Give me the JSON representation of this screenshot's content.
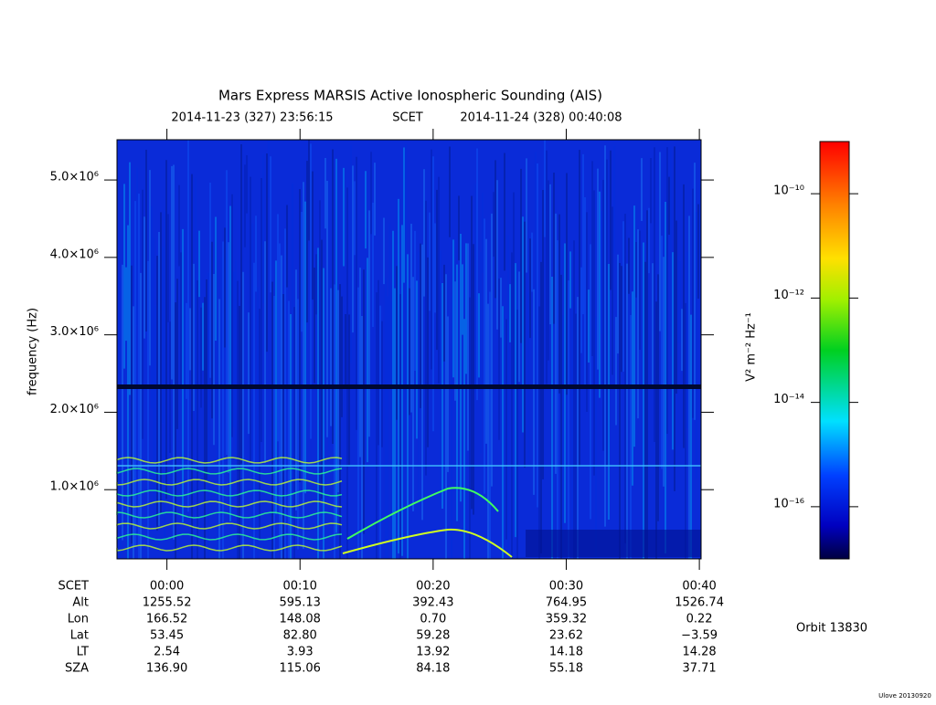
{
  "chart_data": {
    "type": "spectrogram",
    "title": "Mars Express MARSIS Active Ionospheric Sounding (AIS)",
    "subtitle": {
      "start": "2014-11-23 (327) 23:56:15",
      "frame": "SCET",
      "end": "2014-11-24 (328) 00:40:08"
    },
    "ylabel": "frequency (Hz)",
    "ylim": [
      106000,
      5520000
    ],
    "yticks": [
      {
        "value": 1000000,
        "label": "1.0×10⁶"
      },
      {
        "value": 2000000,
        "label": "2.0×10⁶"
      },
      {
        "value": 3000000,
        "label": "3.0×10⁶"
      },
      {
        "value": 4000000,
        "label": "4.0×10⁶"
      },
      {
        "value": 5000000,
        "label": "5.0×10⁶"
      }
    ],
    "xlim": [
      -3.75,
      40.13
    ],
    "xticks": [
      {
        "value": 0,
        "label": "00:00"
      },
      {
        "value": 10,
        "label": "00:10"
      },
      {
        "value": 20,
        "label": "00:20"
      },
      {
        "value": 30,
        "label": "00:30"
      },
      {
        "value": 40,
        "label": "00:40"
      }
    ],
    "ephemeris": {
      "labels": [
        "SCET",
        "Alt",
        "Lon",
        "Lat",
        "LT",
        "SZA"
      ],
      "rows": [
        [
          "1255.52",
          "595.13",
          "392.43",
          "764.95",
          "1526.74"
        ],
        [
          "166.52",
          "148.08",
          "0.70",
          "359.32",
          "0.22"
        ],
        [
          "53.45",
          "82.80",
          "59.28",
          "23.62",
          "−3.59"
        ],
        [
          "2.54",
          "3.93",
          "13.92",
          "14.18",
          "14.28"
        ],
        [
          "136.90",
          "115.06",
          "84.18",
          "55.18",
          "37.71"
        ]
      ]
    },
    "colorbar": {
      "label": "V² m⁻² Hz⁻¹",
      "log": true,
      "lim": [
        1e-17,
        1e-09
      ],
      "ticks": [
        {
          "value": 1e-10,
          "label": "10⁻¹⁰"
        },
        {
          "value": 1e-12,
          "label": "10⁻¹²"
        },
        {
          "value": 1e-14,
          "label": "10⁻¹⁴"
        },
        {
          "value": 1e-16,
          "label": "10⁻¹⁶"
        }
      ]
    },
    "orbit": "Orbit 13830",
    "footer": "Ulove 20130920"
  }
}
